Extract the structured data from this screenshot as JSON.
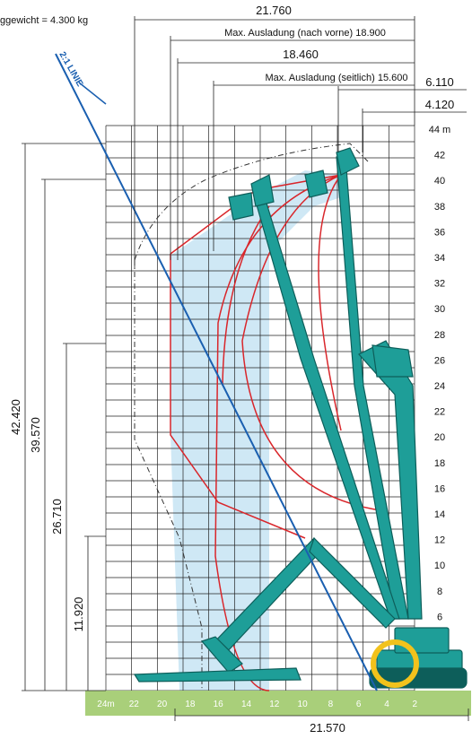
{
  "header": {
    "weight_note": "ggewicht = 4.300 kg"
  },
  "dimensions": {
    "top": [
      {
        "label": "21.760"
      },
      {
        "label": "Max. Ausladung (nach vorne) 18.900"
      },
      {
        "label": "18.460"
      },
      {
        "label": "Max. Ausladung (seitlich) 15.600"
      },
      {
        "label": "6.110"
      },
      {
        "label": "4.120"
      }
    ],
    "left": [
      {
        "label": "42.420"
      },
      {
        "label": "39.570"
      },
      {
        "label": "26.710"
      },
      {
        "label": "11.920"
      }
    ],
    "bottom": {
      "label": "21.570"
    }
  },
  "right_axis": {
    "ticks": [
      "44 m",
      "42",
      "40",
      "38",
      "36",
      "34",
      "32",
      "30",
      "28",
      "26",
      "24",
      "22",
      "20",
      "18",
      "16",
      "14",
      "12",
      "10",
      "8",
      "6",
      "4",
      "2"
    ]
  },
  "ground_axis": {
    "ticks": [
      "24m",
      "22",
      "20",
      "18",
      "16",
      "14",
      "12",
      "10",
      "8",
      "6",
      "4",
      "2"
    ]
  },
  "line_label": "2:1 LINIE",
  "colors": {
    "machine": "#1e9e98",
    "machine_dark": "#0d5e5a",
    "envelope": "#d9262b",
    "shaded_area": "#cfe8f5",
    "line_2_1": "#1a5fb0",
    "ground": "#a9cf7a",
    "grid": "#222222"
  }
}
